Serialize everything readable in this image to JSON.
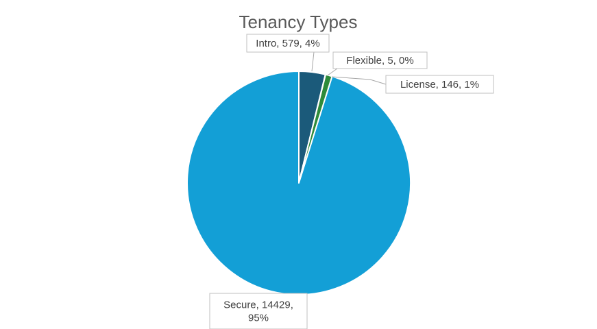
{
  "chart_data": {
    "type": "pie",
    "title": "Tenancy Types",
    "slices": [
      {
        "name": "Intro",
        "value": 579,
        "percent_label": "4%",
        "color": "#1b5a7a"
      },
      {
        "name": "Flexible",
        "value": 5,
        "percent_label": "0%",
        "color": "#1d6e2e"
      },
      {
        "name": "License",
        "value": 146,
        "percent_label": "1%",
        "color": "#2e8b3a"
      },
      {
        "name": "Secure",
        "value": 14429,
        "percent_label": "95%",
        "color": "#139fd6"
      }
    ],
    "data_labels": [
      {
        "lines": [
          "Intro, 579, 4%"
        ]
      },
      {
        "lines": [
          "Flexible, 5, 0%"
        ]
      },
      {
        "lines": [
          "License, 146, 1%"
        ]
      },
      {
        "lines": [
          "Secure, 14429,",
          "95%"
        ]
      }
    ],
    "start_angle_deg": 0,
    "direction": "clockwise",
    "legend": "none"
  }
}
